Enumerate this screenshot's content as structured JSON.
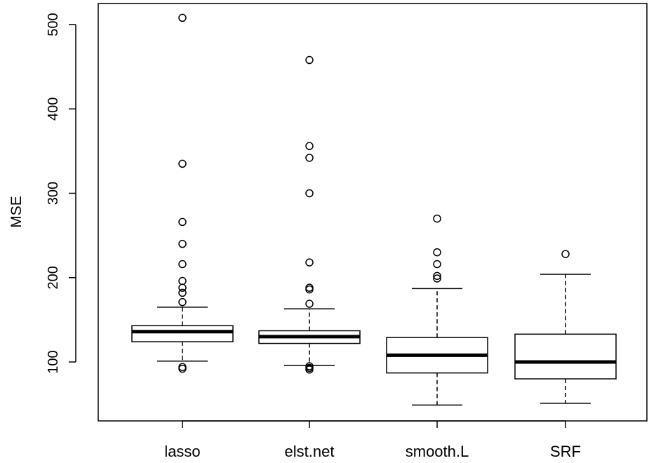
{
  "chart_data": {
    "type": "boxplot",
    "title": "",
    "xlabel": "",
    "ylabel": "MSE",
    "ylim": [
      25,
      525
    ],
    "yticks": [
      100,
      200,
      300,
      400,
      500
    ],
    "grid": false,
    "legend": "none",
    "categories": [
      "lasso",
      "elst.net",
      "smooth.L",
      "SRF"
    ],
    "boxes": [
      {
        "name": "lasso",
        "whisker_low": 101,
        "q1": 124,
        "median": 136,
        "q3": 143,
        "whisker_high": 165,
        "outliers": [
          92,
          94,
          171,
          182,
          188,
          196,
          216,
          240,
          266,
          335,
          508
        ]
      },
      {
        "name": "elst.net",
        "whisker_low": 96,
        "q1": 122,
        "median": 130,
        "q3": 137,
        "whisker_high": 163,
        "outliers": [
          91,
          93,
          95,
          169,
          186,
          188,
          218,
          300,
          342,
          356,
          458
        ]
      },
      {
        "name": "smooth.L",
        "whisker_low": 49,
        "q1": 87,
        "median": 108,
        "q3": 129,
        "whisker_high": 187,
        "outliers": [
          199,
          202,
          216,
          230,
          270
        ]
      },
      {
        "name": "SRF",
        "whisker_low": 51,
        "q1": 80,
        "median": 100,
        "q3": 133,
        "whisker_high": 204,
        "outliers": [
          228
        ]
      }
    ]
  }
}
